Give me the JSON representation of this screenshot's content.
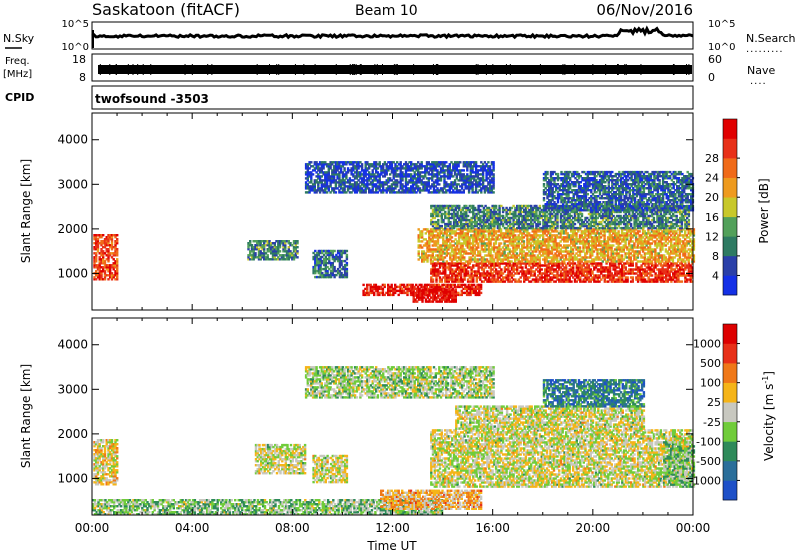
{
  "header": {
    "station": "Saskatoon (fitACF)",
    "beam": "Beam 10",
    "date": "06/Nov/2016"
  },
  "noise_panel": {
    "left_label": "N.Sky",
    "right_label": "N.Search",
    "tick_top": "10^5",
    "tick_bottom": "10^0"
  },
  "freq_panel": {
    "left_label_1": "Freq.",
    "left_label_2": "[MHz]",
    "right_label": "Nave",
    "left_ticks": [
      "18",
      "8"
    ],
    "right_ticks": [
      "60",
      "0"
    ],
    "freq_mhz": 10.6
  },
  "cpid_panel": {
    "label": "CPID",
    "program": "twofsound  -3503"
  },
  "chart_data": [
    {
      "type": "heatmap",
      "name": "power",
      "ylabel": "Slant Range [km]",
      "xlabel": "",
      "ylim": [
        180,
        4600
      ],
      "xlim": [
        0,
        24
      ],
      "y_ticks": [
        "1000",
        "2000",
        "3000",
        "4000"
      ],
      "colorbar": {
        "label": "Power [dB]",
        "ticks": [
          "4",
          "8",
          "12",
          "16",
          "20",
          "24",
          "28"
        ],
        "colors": [
          "#1430e6",
          "#2a3fa8",
          "#2e7a62",
          "#52a05a",
          "#c8c82a",
          "#ee9a1e",
          "#f06a18",
          "#e83018",
          "#e00000"
        ]
      },
      "regions": [
        {
          "t0": 0.05,
          "t1": 1.0,
          "r0": 850,
          "r1": 1850,
          "level": 0.8
        },
        {
          "t0": 6.2,
          "t1": 8.2,
          "r0": 1300,
          "r1": 1750,
          "level": 0.3
        },
        {
          "t0": 8.8,
          "t1": 10.2,
          "r0": 900,
          "r1": 1500,
          "level": 0.25
        },
        {
          "t0": 10.8,
          "t1": 15.5,
          "r0": 500,
          "r1": 750,
          "level": 0.9
        },
        {
          "t0": 12.8,
          "t1": 14.5,
          "r0": 350,
          "r1": 650,
          "level": 0.95
        },
        {
          "t0": 13.5,
          "t1": 24.0,
          "r0": 800,
          "r1": 1250,
          "level": 0.85
        },
        {
          "t0": 13.0,
          "t1": 24.0,
          "r0": 1250,
          "r1": 2000,
          "level": 0.6
        },
        {
          "t0": 13.5,
          "t1": 23.8,
          "r0": 2000,
          "r1": 2500,
          "level": 0.3
        },
        {
          "t0": 8.5,
          "t1": 16.0,
          "r0": 2800,
          "r1": 3500,
          "level": 0.15
        },
        {
          "t0": 18.0,
          "t1": 24.0,
          "r0": 2400,
          "r1": 3300,
          "level": 0.2
        }
      ]
    },
    {
      "type": "heatmap",
      "name": "velocity",
      "ylabel": "Slant Range [km]",
      "xlabel": "Time UT",
      "ylim": [
        180,
        4600
      ],
      "xlim": [
        0,
        24
      ],
      "y_ticks": [
        "1000",
        "2000",
        "3000",
        "4000"
      ],
      "x_ticks": [
        "00:00",
        "04:00",
        "08:00",
        "12:00",
        "16:00",
        "20:00",
        "00:00"
      ],
      "colorbar": {
        "label": "Velocity [m s^-1]",
        "ticks": [
          "1000",
          "500",
          "100",
          "25",
          "-25",
          "-100",
          "-500",
          "-1000"
        ],
        "colors": [
          "#1e50c8",
          "#2a6e9a",
          "#2e8a5a",
          "#70cc3a",
          "#c8c8c0",
          "#f5b418",
          "#ef7818",
          "#e83018",
          "#dd0000"
        ]
      },
      "regions": [
        {
          "t0": 0.05,
          "t1": 1.0,
          "r0": 850,
          "r1": 1850,
          "level": 0.55
        },
        {
          "t0": 0.0,
          "t1": 14.0,
          "r0": 180,
          "r1": 500,
          "level": 0.4
        },
        {
          "t0": 6.5,
          "t1": 8.5,
          "r0": 1100,
          "r1": 1750,
          "level": 0.5
        },
        {
          "t0": 8.8,
          "t1": 10.2,
          "r0": 900,
          "r1": 1500,
          "level": 0.5
        },
        {
          "t0": 11.5,
          "t1": 15.5,
          "r0": 300,
          "r1": 750,
          "level": 0.62
        },
        {
          "t0": 13.5,
          "t1": 24.0,
          "r0": 800,
          "r1": 2100,
          "level": 0.5
        },
        {
          "t0": 14.5,
          "t1": 22.0,
          "r0": 2100,
          "r1": 2600,
          "level": 0.5
        },
        {
          "t0": 22.8,
          "t1": 24.0,
          "r0": 800,
          "r1": 1800,
          "level": 0.4
        },
        {
          "t0": 8.5,
          "t1": 16.0,
          "r0": 2800,
          "r1": 3500,
          "level": 0.45
        },
        {
          "t0": 18.0,
          "t1": 22.0,
          "r0": 2600,
          "r1": 3200,
          "level": 0.2
        }
      ]
    }
  ]
}
